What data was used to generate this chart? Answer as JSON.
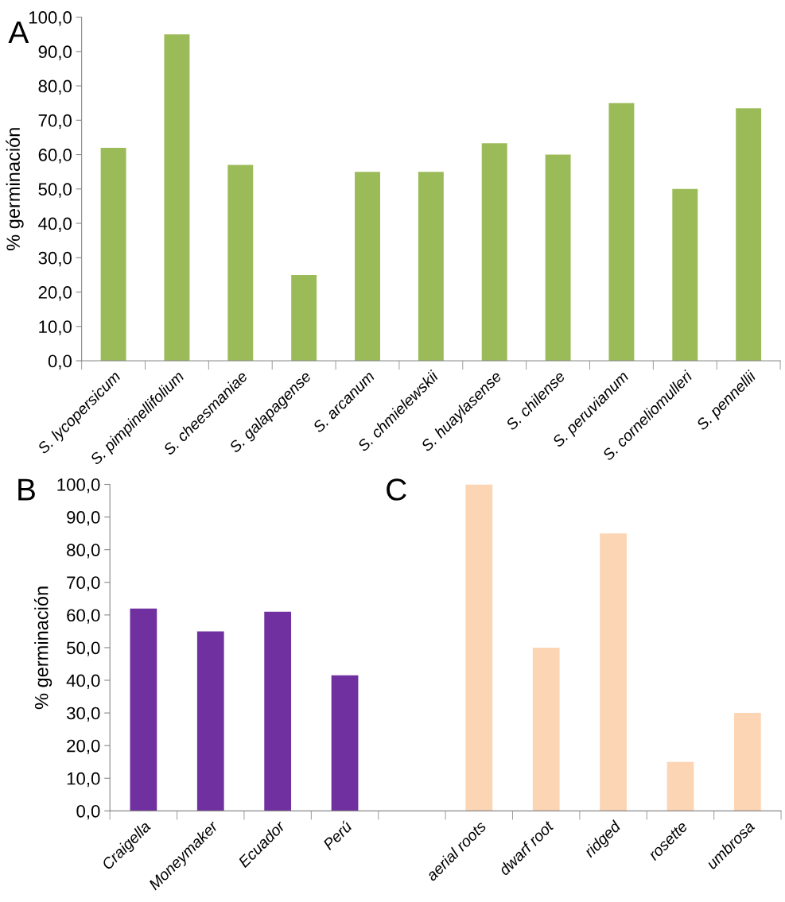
{
  "chart_data": [
    {
      "type": "bar",
      "ylabel": "% germinación",
      "annotations": [
        "A"
      ],
      "categories": [
        "S. lycopersicum",
        "S. pimpinellifolium",
        "S. cheesmaniae",
        "S. galapagense",
        "S. arcanum",
        "S. chmielewskii",
        "S. huaylasense",
        "S. chilense",
        "S. peruvianum",
        "S. corneliomulleri",
        "S. pennellii"
      ],
      "values": [
        62,
        95,
        57,
        25,
        55,
        55,
        63.3,
        60,
        75,
        50,
        73.5
      ],
      "color": "#9bbb59",
      "ylim": [
        0,
        100
      ],
      "yticks": [
        {
          "value": 0,
          "label": "0,0"
        },
        {
          "value": 10,
          "label": "10,0"
        },
        {
          "value": 20,
          "label": "20,0"
        },
        {
          "value": 30,
          "label": "30,0"
        },
        {
          "value": 40,
          "label": "40,0"
        },
        {
          "value": 50,
          "label": "50,0"
        },
        {
          "value": 60,
          "label": "60,0"
        },
        {
          "value": 70,
          "label": "70,0"
        },
        {
          "value": 80,
          "label": "80,0"
        },
        {
          "value": 90,
          "label": "90,0"
        },
        {
          "value": 100,
          "label": "100,0"
        }
      ],
      "grid": false,
      "legend": false
    },
    {
      "type": "bar",
      "ylabel": "% germinación",
      "annotations": [
        "B",
        "C"
      ],
      "categories": [
        "Craigella",
        "Moneymaker",
        "Ecuador",
        "Perú",
        null,
        "aerial roots",
        "dwarf root",
        "ridged",
        "rosette",
        "umbrosa"
      ],
      "values": [
        62,
        55,
        61,
        41.5,
        null,
        100,
        50,
        85,
        15,
        30
      ],
      "colors": [
        "#7030a0",
        "#7030a0",
        "#7030a0",
        "#7030a0",
        "#7030a0",
        "#fcd5b4",
        "#fcd5b4",
        "#fcd5b4",
        "#fcd5b4",
        "#fcd5b4"
      ],
      "ylim": [
        0,
        100
      ],
      "yticks": [
        {
          "value": 0,
          "label": "0,0"
        },
        {
          "value": 10,
          "label": "10,0"
        },
        {
          "value": 20,
          "label": "20,0"
        },
        {
          "value": 30,
          "label": "30,0"
        },
        {
          "value": 40,
          "label": "40,0"
        },
        {
          "value": 50,
          "label": "50,0"
        },
        {
          "value": 60,
          "label": "60,0"
        },
        {
          "value": 70,
          "label": "70,0"
        },
        {
          "value": 80,
          "label": "80,0"
        },
        {
          "value": 90,
          "label": "90,0"
        },
        {
          "value": 100,
          "label": "100,0"
        }
      ],
      "grid": false,
      "legend": false
    }
  ]
}
